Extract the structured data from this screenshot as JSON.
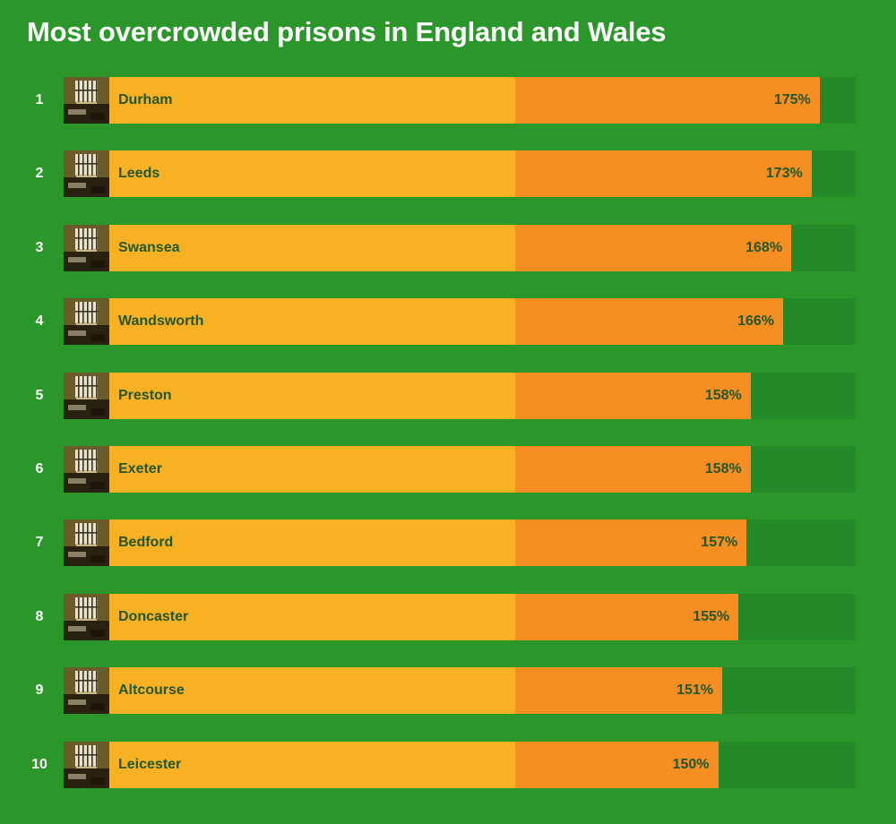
{
  "chart_data": {
    "type": "bar",
    "title": "Most overcrowded prisons in England and Wales",
    "categories": [
      "Durham",
      "Leeds",
      "Swansea",
      "Wandsworth",
      "Preston",
      "Exeter",
      "Bedford",
      "Doncaster",
      "Altcourse",
      "Leicester"
    ],
    "ranks": [
      "1",
      "2",
      "3",
      "4",
      "5",
      "6",
      "7",
      "8",
      "9",
      "10"
    ],
    "values": [
      175,
      173,
      168,
      166,
      158,
      158,
      157,
      155,
      151,
      150
    ],
    "value_labels": [
      "175%",
      "173%",
      "168%",
      "166%",
      "158%",
      "158%",
      "157%",
      "155%",
      "151%",
      "150%"
    ],
    "baseline": 100,
    "xlim": [
      0,
      175
    ],
    "orientation": "horizontal",
    "grid": false,
    "legend": "none",
    "colors": {
      "background": "#2b962a",
      "track": "#238a27",
      "within_capacity": "#f7b123",
      "over_capacity": "#f68e21",
      "label_text": "#23572a",
      "title_text": "#ffffff"
    },
    "row_icon": "prison-cell-window-photo"
  }
}
